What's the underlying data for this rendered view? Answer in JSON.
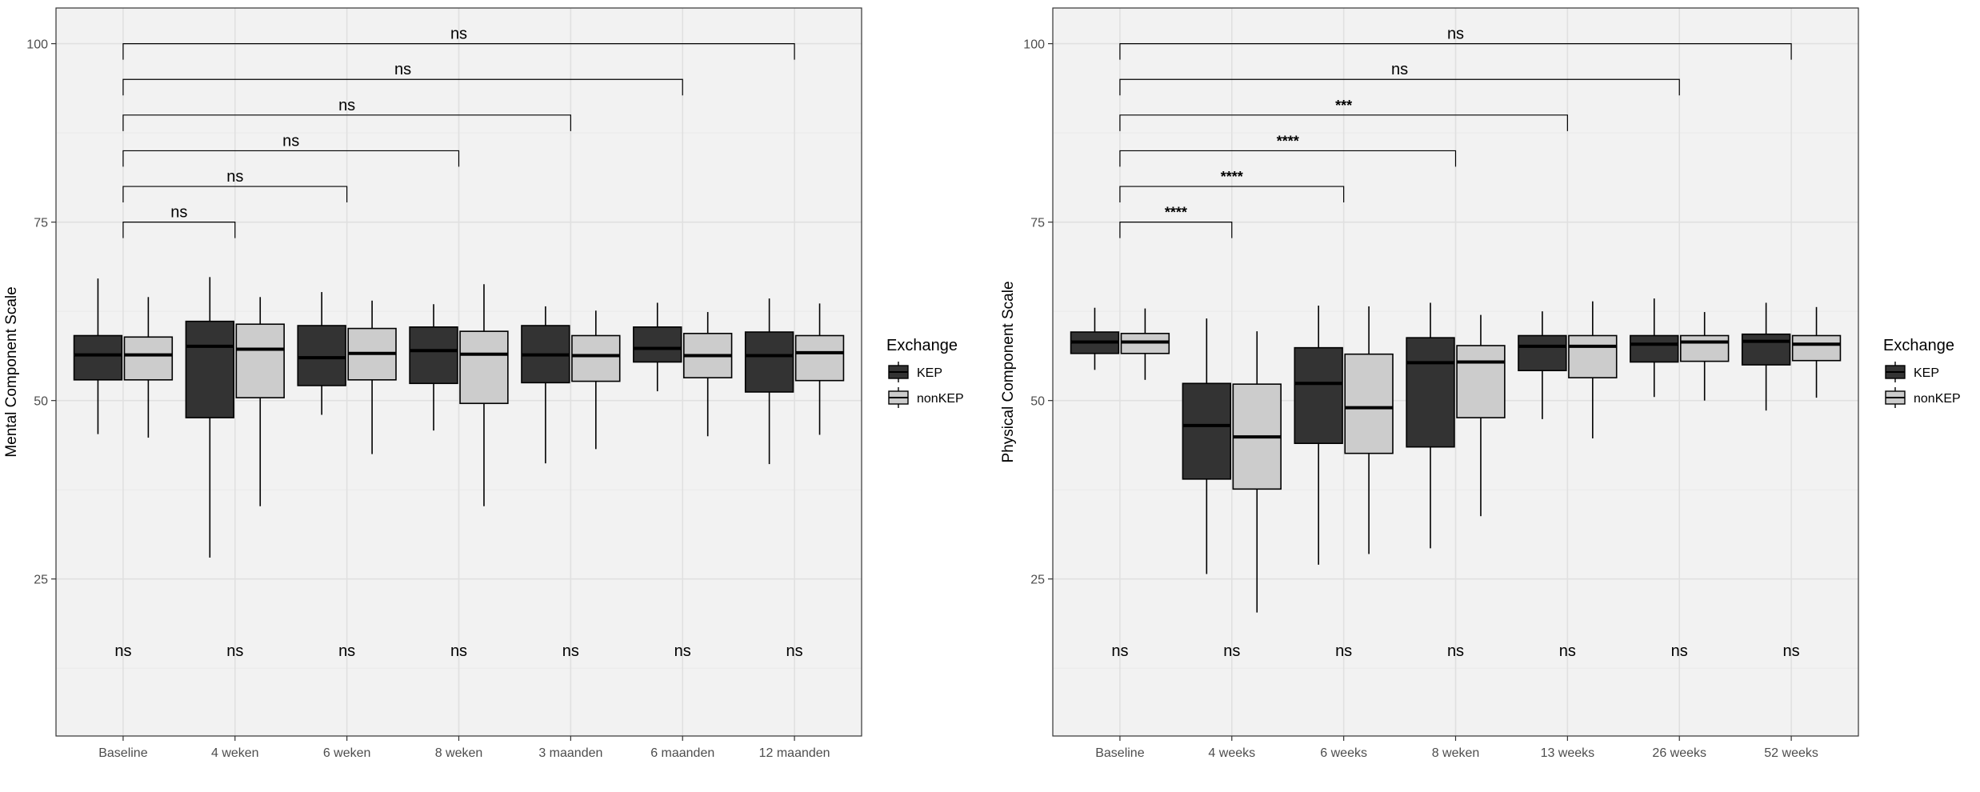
{
  "colors": {
    "panel_bg": "#f2f2f2",
    "grid_major": "#e0e0e0",
    "grid_minor": "#eaeaea",
    "KEP": "#333333",
    "nonKEP": "#cccccc",
    "text": "#000000"
  },
  "chart_data": [
    {
      "type": "boxplot",
      "ylabel": "Mental Component Scale",
      "ylim": [
        3,
        105
      ],
      "yticks": [
        25,
        50,
        75,
        100
      ],
      "categories": [
        "Baseline",
        "4 weken",
        "6 weken",
        "8 weken",
        "3 maanden",
        "6 maanden",
        "12 maanden"
      ],
      "legend": {
        "title": "Exchange",
        "entries": [
          "KEP",
          "nonKEP"
        ],
        "position": "right"
      },
      "series": [
        {
          "name": "KEP",
          "boxes": [
            {
              "min": 45.3,
              "q1": 52.9,
              "median": 56.4,
              "q3": 59.1,
              "max": 67.1
            },
            {
              "min": 28.0,
              "q1": 47.6,
              "median": 57.6,
              "q3": 61.1,
              "max": 67.3
            },
            {
              "min": 48.0,
              "q1": 52.1,
              "median": 56.0,
              "q3": 60.5,
              "max": 65.2
            },
            {
              "min": 45.8,
              "q1": 52.4,
              "median": 57.0,
              "q3": 60.3,
              "max": 63.5
            },
            {
              "min": 41.2,
              "q1": 52.5,
              "median": 56.4,
              "q3": 60.5,
              "max": 63.2
            },
            {
              "min": 51.3,
              "q1": 55.4,
              "median": 57.3,
              "q3": 60.3,
              "max": 63.7
            },
            {
              "min": 41.1,
              "q1": 51.2,
              "median": 56.3,
              "q3": 59.6,
              "max": 64.3
            }
          ]
        },
        {
          "name": "nonKEP",
          "boxes": [
            {
              "min": 44.8,
              "q1": 52.9,
              "median": 56.4,
              "q3": 58.9,
              "max": 64.5
            },
            {
              "min": 35.2,
              "q1": 50.4,
              "median": 57.2,
              "q3": 60.7,
              "max": 64.5
            },
            {
              "min": 42.5,
              "q1": 52.9,
              "median": 56.6,
              "q3": 60.1,
              "max": 64.0
            },
            {
              "min": 35.2,
              "q1": 49.6,
              "median": 56.5,
              "q3": 59.7,
              "max": 66.3
            },
            {
              "min": 43.2,
              "q1": 52.7,
              "median": 56.3,
              "q3": 59.1,
              "max": 62.6
            },
            {
              "min": 45.0,
              "q1": 53.2,
              "median": 56.3,
              "q3": 59.4,
              "max": 62.4
            },
            {
              "min": 45.2,
              "q1": 52.8,
              "median": 56.7,
              "q3": 59.1,
              "max": 63.6
            }
          ]
        }
      ],
      "bracket_labels": [
        "ns",
        "ns",
        "ns",
        "ns",
        "ns",
        "ns"
      ],
      "bracket_y": [
        75,
        80,
        85,
        90,
        95,
        100
      ],
      "bottom_labels": [
        "ns",
        "ns",
        "ns",
        "ns",
        "ns",
        "ns",
        "ns"
      ],
      "bottom_label_y": 15
    },
    {
      "type": "boxplot",
      "ylabel": "Physical Component Scale",
      "ylim": [
        3,
        105
      ],
      "yticks": [
        25,
        50,
        75,
        100
      ],
      "categories": [
        "Baseline",
        "4 weeks",
        "6 weeks",
        "8 weken",
        "13 weeks",
        "26 weeks",
        "52 weeks"
      ],
      "legend": {
        "title": "Exchange",
        "entries": [
          "KEP",
          "nonKEP"
        ],
        "position": "right"
      },
      "series": [
        {
          "name": "KEP",
          "boxes": [
            {
              "min": 54.3,
              "q1": 56.6,
              "median": 58.2,
              "q3": 59.6,
              "max": 63.0
            },
            {
              "min": 25.7,
              "q1": 39.0,
              "median": 46.5,
              "q3": 52.4,
              "max": 61.5
            },
            {
              "min": 27.0,
              "q1": 44.0,
              "median": 52.4,
              "q3": 57.4,
              "max": 63.3
            },
            {
              "min": 29.3,
              "q1": 43.5,
              "median": 55.3,
              "q3": 58.8,
              "max": 63.7
            },
            {
              "min": 47.4,
              "q1": 54.2,
              "median": 57.6,
              "q3": 59.1,
              "max": 62.5
            },
            {
              "min": 50.5,
              "q1": 55.4,
              "median": 57.9,
              "q3": 59.1,
              "max": 64.3
            },
            {
              "min": 48.6,
              "q1": 55.0,
              "median": 58.3,
              "q3": 59.3,
              "max": 63.7
            }
          ]
        },
        {
          "name": "nonKEP",
          "boxes": [
            {
              "min": 52.9,
              "q1": 56.6,
              "median": 58.2,
              "q3": 59.4,
              "max": 62.9
            },
            {
              "min": 20.3,
              "q1": 37.6,
              "median": 44.9,
              "q3": 52.3,
              "max": 59.7
            },
            {
              "min": 28.5,
              "q1": 42.6,
              "median": 49.0,
              "q3": 56.5,
              "max": 63.2
            },
            {
              "min": 33.8,
              "q1": 47.6,
              "median": 55.4,
              "q3": 57.7,
              "max": 62.0
            },
            {
              "min": 44.7,
              "q1": 53.2,
              "median": 57.6,
              "q3": 59.1,
              "max": 63.9
            },
            {
              "min": 50.0,
              "q1": 55.5,
              "median": 58.2,
              "q3": 59.1,
              "max": 62.4
            },
            {
              "min": 50.4,
              "q1": 55.6,
              "median": 57.9,
              "q3": 59.1,
              "max": 63.1
            }
          ]
        }
      ],
      "bracket_labels": [
        "****",
        "****",
        "****",
        "***",
        "ns",
        "ns"
      ],
      "bracket_y": [
        75,
        80,
        85,
        90,
        95,
        100
      ],
      "bottom_labels": [
        "ns",
        "ns",
        "ns",
        "ns",
        "ns",
        "ns",
        "ns"
      ],
      "bottom_label_y": 15
    }
  ]
}
